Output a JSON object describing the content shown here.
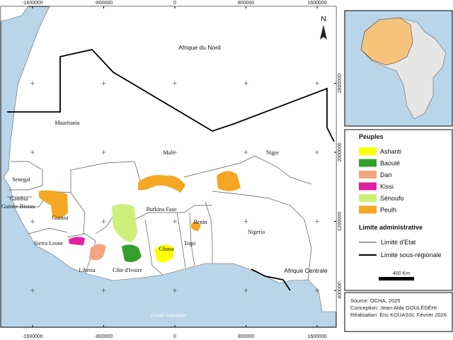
{
  "map": {
    "north": "N",
    "xticks": [
      -1600000,
      -800000,
      0,
      800000,
      1600000
    ],
    "yticks": [
      2800000,
      2000000,
      1200000,
      400000
    ],
    "labels": [
      "Afrique du Nord",
      "Mauritania",
      "Mali",
      "Niger",
      "Senegal",
      "Gambia",
      "Guinée-Bissau",
      "Guinea",
      "Sierra Leone",
      "Liberia",
      "Côte d'Ivoire",
      "Ghana",
      "Togo",
      "Benin",
      "Burkina Faso",
      "Nigeria",
      "Afrique Centrale",
      "Océan Atlantique"
    ]
  },
  "legend": {
    "peoples_title": "Peuples",
    "peoples": [
      {
        "name": "Ashanti",
        "color": "#ffff00"
      },
      {
        "name": "Baoulé",
        "color": "#33a02c"
      },
      {
        "name": "Dan",
        "color": "#f4a582"
      },
      {
        "name": "Kissi",
        "color": "#e0209c"
      },
      {
        "name": "Sénoufo",
        "color": "#ccf07a"
      },
      {
        "name": "Peulh",
        "color": "#f5a623"
      }
    ],
    "admin_title": "Limite administrative",
    "lines": [
      "Limite d'Etat",
      "Limite sous-régionale"
    ],
    "scale": "400 Km"
  },
  "credits": [
    "Source: OCHA, 2025",
    "Conception: Jean-Alda GOULÉDÉHI",
    "Réalisation: Éric KOUASSI, Février 2026"
  ]
}
